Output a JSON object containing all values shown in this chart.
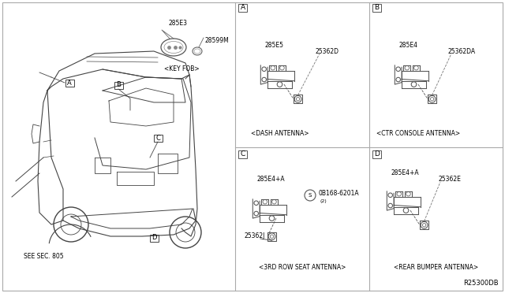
{
  "bg_color": "#ffffff",
  "line_color": "#444444",
  "gray_color": "#888888",
  "title_ref": "R25300DB",
  "see_sec": "SEE SEC. 805",
  "key_fob_label": "<KEY FOB>",
  "key_fob_part1": "285E3",
  "key_fob_part2": "28599M",
  "section_A_label": "A",
  "section_B_label": "B",
  "section_C_label": "C",
  "section_D_label": "D",
  "sectionA_part1": "285E5",
  "sectionA_part2": "25362D",
  "sectionA_caption": "<DASH ANTENNA>",
  "sectionB_part1": "285E4",
  "sectionB_part2": "25362DA",
  "sectionB_caption": "<CTR CONSOLE ANTENNA>",
  "sectionC_part1": "285E4+A",
  "sectionC_part2": "25362J",
  "sectionC_part3": "0B168-6201A",
  "sectionC_part3_prefix": "S",
  "sectionC_part3_suffix": "(2)",
  "sectionC_caption": "<3RD ROW SEAT ANTENNA>",
  "sectionD_part1": "285E4+A",
  "sectionD_part2": "25362E",
  "sectionD_caption": "<REAR BUMPER ANTENNA>"
}
